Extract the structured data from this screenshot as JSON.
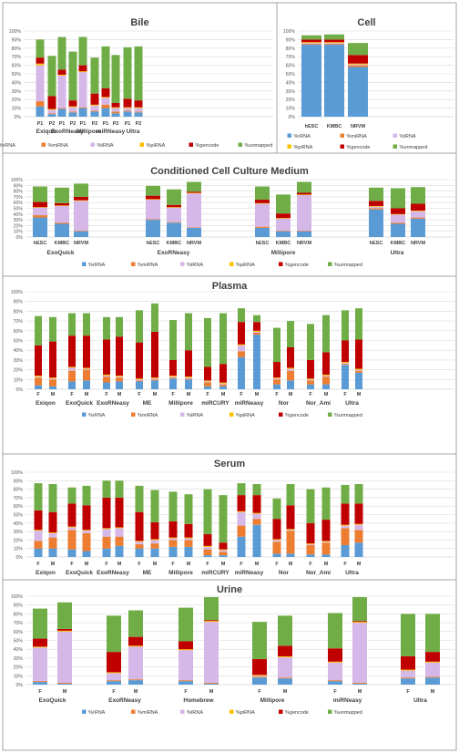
{
  "chart_data": [
    {
      "title": "Bile",
      "type": "bar",
      "yticks": [
        "0%",
        "10%",
        "20%",
        "30%",
        "40%",
        "50%",
        "60%",
        "70%",
        "80%",
        "90%",
        "100%"
      ],
      "categories": [
        "P1",
        "P2",
        "P1",
        "P2",
        "P1",
        "P2",
        "P1",
        "P2",
        "P1",
        "P2"
      ],
      "groups": [
        "Exiqon",
        "ExoRNeasy",
        "Millipore",
        "miRNeasy",
        "Ultra"
      ],
      "legend": [
        "%rRNA",
        "%miRNA",
        "%tRNA",
        "%piRNA",
        "%gencode",
        "%unmapped"
      ],
      "series": [
        {
          "name": "%rRNA",
          "values": [
            12,
            3,
            9,
            5,
            10,
            6,
            10,
            4,
            6,
            5
          ]
        },
        {
          "name": "%miRNA",
          "values": [
            6,
            1,
            1,
            1,
            1,
            1,
            4,
            2,
            1,
            1
          ]
        },
        {
          "name": "%tRNA",
          "values": [
            42,
            4,
            38,
            5,
            41,
            6,
            8,
            4,
            3,
            4
          ]
        },
        {
          "name": "%piRNA",
          "values": [
            2,
            1,
            1,
            1,
            1,
            1,
            1,
            1,
            1,
            1
          ]
        },
        {
          "name": "%gencode",
          "values": [
            7,
            15,
            6,
            7,
            7,
            13,
            10,
            5,
            10,
            8
          ]
        },
        {
          "name": "%unmapped",
          "values": [
            21,
            47,
            38,
            57,
            33,
            42,
            49,
            56,
            60,
            63
          ]
        }
      ]
    },
    {
      "title": "Cell",
      "type": "bar",
      "yticks": [
        "0%",
        "10%",
        "20%",
        "30%",
        "40%",
        "50%",
        "60%",
        "70%",
        "80%",
        "90%",
        "100%"
      ],
      "categories": [
        "hESC",
        "KMBC",
        "NRVM"
      ],
      "groups": [],
      "legend": [
        "%rRNA",
        "%miRNA",
        "%tRNA",
        "%piRNA",
        "%gencode",
        "%unmapped"
      ],
      "series": [
        {
          "name": "%rRNA",
          "values": [
            84,
            84,
            58
          ]
        },
        {
          "name": "%miRNA",
          "values": [
            1,
            1,
            2
          ]
        },
        {
          "name": "%tRNA",
          "values": [
            1,
            1,
            1
          ]
        },
        {
          "name": "%piRNA",
          "values": [
            1,
            1,
            1
          ]
        },
        {
          "name": "%gencode",
          "values": [
            3,
            3,
            10
          ]
        },
        {
          "name": "%unmapped",
          "values": [
            5,
            6,
            14
          ]
        }
      ]
    },
    {
      "title": "Conditioned Cell Culture Medium",
      "type": "bar",
      "yticks": [
        "0%",
        "10%",
        "20%",
        "30%",
        "40%",
        "50%",
        "60%",
        "70%",
        "80%",
        "90%",
        "100%"
      ],
      "categories": [
        "hESC",
        "KMBC",
        "NRVM",
        "hESC",
        "KMBC",
        "NRVM",
        "hESC",
        "KMBC",
        "NRVM",
        "hESC",
        "KMBC",
        "NRVM"
      ],
      "groups": [
        "ExoQuick",
        "ExoRNeasy",
        "Millipore",
        "Ultra"
      ],
      "legend": [
        "%rRNA",
        "%miRNA",
        "%tRNA",
        "%piRNA",
        "%gencode",
        "%unmapped"
      ],
      "series": [
        {
          "name": "%rRNA",
          "values": [
            34,
            23,
            10,
            30,
            25,
            16,
            16,
            10,
            10,
            48,
            23,
            32
          ]
        },
        {
          "name": "%miRNA",
          "values": [
            4,
            2,
            1,
            1,
            1,
            1,
            2,
            1,
            1,
            2,
            2,
            2
          ]
        },
        {
          "name": "%tRNA",
          "values": [
            13,
            29,
            52,
            34,
            25,
            59,
            40,
            21,
            62,
            3,
            14,
            11
          ]
        },
        {
          "name": "%piRNA",
          "values": [
            1,
            1,
            1,
            1,
            1,
            1,
            1,
            1,
            1,
            1,
            1,
            1
          ]
        },
        {
          "name": "%gencode",
          "values": [
            9,
            4,
            6,
            6,
            4,
            2,
            6,
            8,
            3,
            9,
            10,
            12
          ]
        },
        {
          "name": "%unmapped",
          "values": [
            27,
            27,
            23,
            17,
            27,
            17,
            23,
            33,
            19,
            23,
            35,
            29
          ]
        }
      ]
    },
    {
      "title": "Plasma",
      "type": "bar",
      "yticks": [
        "0%",
        "10%",
        "20%",
        "30%",
        "40%",
        "50%",
        "60%",
        "70%",
        "80%",
        "90%",
        "100%"
      ],
      "categories": [
        "F",
        "M",
        "F",
        "M",
        "F",
        "M",
        "F",
        "M",
        "F",
        "M",
        "F",
        "M",
        "F",
        "M",
        "F",
        "M",
        "F",
        "M",
        "F",
        "M"
      ],
      "groups": [
        "Exiqon",
        "ExoQuick",
        "ExoRNeasy",
        "ME",
        "Millipore",
        "miRCURY",
        "miRNeasy",
        "Nor",
        "Nor_Ami",
        "Ultra"
      ],
      "legend": [
        "%rRNA",
        "%miRNA",
        "%tRNA",
        "%piRNA",
        "%gencode",
        "%unmapped"
      ],
      "series": [
        {
          "name": "%rRNA",
          "values": [
            4,
            3,
            8,
            9,
            7,
            8,
            8,
            9,
            11,
            10,
            3,
            3,
            33,
            56,
            5,
            9,
            5,
            5,
            25,
            17
          ]
        },
        {
          "name": "%miRNA",
          "values": [
            8,
            7,
            11,
            11,
            6,
            4,
            1,
            1,
            1,
            1,
            4,
            2,
            6,
            2,
            5,
            10,
            4,
            8,
            1,
            2
          ]
        },
        {
          "name": "%tRNA",
          "values": [
            1,
            1,
            3,
            1,
            1,
            1,
            1,
            1,
            1,
            1,
            1,
            1,
            6,
            1,
            1,
            2,
            1,
            1,
            1,
            1
          ]
        },
        {
          "name": "%piRNA",
          "values": [
            1,
            1,
            1,
            1,
            1,
            1,
            1,
            1,
            1,
            1,
            1,
            1,
            1,
            1,
            1,
            1,
            1,
            1,
            1,
            1
          ]
        },
        {
          "name": "%gencode",
          "values": [
            31,
            37,
            32,
            33,
            36,
            40,
            37,
            47,
            16,
            27,
            14,
            19,
            23,
            9,
            16,
            21,
            19,
            23,
            22,
            30
          ]
        },
        {
          "name": "%unmapped",
          "values": [
            30,
            25,
            23,
            23,
            23,
            20,
            33,
            29,
            41,
            38,
            50,
            52,
            14,
            7,
            35,
            27,
            37,
            38,
            31,
            32
          ]
        }
      ]
    },
    {
      "title": "Serum",
      "type": "bar",
      "yticks": [
        "0%",
        "10%",
        "20%",
        "30%",
        "40%",
        "50%",
        "60%",
        "70%",
        "80%",
        "90%",
        "100%"
      ],
      "categories": [
        "F",
        "M",
        "F",
        "M",
        "F",
        "M",
        "F",
        "M",
        "F",
        "M",
        "F",
        "M",
        "F",
        "M",
        "F",
        "M",
        "F",
        "M",
        "F",
        "M"
      ],
      "groups": [
        "Exiqon",
        "ExoQuick",
        "ExoRNeasy",
        "ME",
        "Millipore",
        "miRCURY",
        "miRNeasy",
        "Nor",
        "Nor_Ami",
        "Ultra"
      ],
      "legend": [
        "%rRNA",
        "%miRNA",
        "%tRNA",
        "%piRNA",
        "%gencode",
        "%unmapped"
      ],
      "series": [
        {
          "name": "%rRNA",
          "values": [
            10,
            10,
            9,
            7,
            10,
            13,
            10,
            10,
            12,
            12,
            2,
            2,
            24,
            38,
            4,
            4,
            3,
            3,
            14,
            17
          ]
        },
        {
          "name": "%miRNA",
          "values": [
            9,
            13,
            23,
            21,
            14,
            11,
            5,
            6,
            8,
            8,
            7,
            4,
            13,
            7,
            14,
            27,
            11,
            14,
            20,
            15
          ]
        },
        {
          "name": "%tRNA",
          "values": [
            12,
            5,
            3,
            3,
            9,
            10,
            3,
            4,
            2,
            2,
            3,
            2,
            16,
            6,
            2,
            1,
            1,
            1,
            3,
            6
          ]
        },
        {
          "name": "%piRNA",
          "values": [
            1,
            1,
            1,
            1,
            1,
            1,
            1,
            1,
            1,
            1,
            1,
            1,
            1,
            1,
            1,
            1,
            1,
            1,
            1,
            1
          ]
        },
        {
          "name": "%gencode",
          "values": [
            23,
            24,
            27,
            29,
            36,
            35,
            34,
            20,
            19,
            16,
            14,
            8,
            19,
            21,
            24,
            28,
            24,
            25,
            25,
            24
          ]
        },
        {
          "name": "%unmapped",
          "values": [
            32,
            33,
            19,
            23,
            20,
            20,
            31,
            38,
            35,
            35,
            53,
            56,
            14,
            13,
            24,
            25,
            40,
            38,
            22,
            23
          ]
        }
      ]
    },
    {
      "title": "Urine",
      "type": "bar",
      "yticks": [
        "0%",
        "10%",
        "20%",
        "30%",
        "40%",
        "50%",
        "60%",
        "70%",
        "80%",
        "90%",
        "100%"
      ],
      "categories": [
        "F",
        "M",
        "F",
        "M",
        "F",
        "M",
        "F",
        "M",
        "F",
        "M",
        "F",
        "M"
      ],
      "groups": [
        "ExoQuick",
        "ExoRNeasy",
        "Homebrew",
        "Millipore",
        "miRNeasy",
        "Ultra"
      ],
      "legend": [
        "%rRNA",
        "%miRNA",
        "%tRNA",
        "%piRNA",
        "%gencode",
        "%unmapped"
      ],
      "series": [
        {
          "name": "%rRNA",
          "values": [
            3,
            1,
            4,
            5,
            4,
            1,
            8,
            7,
            4,
            1,
            7,
            8
          ]
        },
        {
          "name": "%miRNA",
          "values": [
            1,
            1,
            1,
            1,
            1,
            1,
            1,
            1,
            1,
            1,
            1,
            1
          ]
        },
        {
          "name": "%tRNA",
          "values": [
            38,
            58,
            8,
            37,
            34,
            69,
            1,
            23,
            20,
            68,
            8,
            16
          ]
        },
        {
          "name": "%piRNA",
          "values": [
            1,
            1,
            1,
            1,
            1,
            1,
            1,
            1,
            1,
            1,
            1,
            1
          ]
        },
        {
          "name": "%gencode",
          "values": [
            9,
            2,
            23,
            10,
            9,
            1,
            18,
            12,
            15,
            1,
            15,
            11
          ]
        },
        {
          "name": "%unmapped",
          "values": [
            34,
            30,
            41,
            30,
            38,
            26,
            42,
            34,
            40,
            27,
            48,
            43
          ]
        }
      ]
    }
  ],
  "colors": {
    "%rRNA": "#5b9bd5",
    "%miRNA": "#ed7d31",
    "%tRNA": "#d5b8e8",
    "%piRNA": "#ffc000",
    "%gencode": "#c00000",
    "%unmapped": "#70ad47",
    "grid": "#d9d9d9",
    "frame": "#a6a6a6"
  }
}
